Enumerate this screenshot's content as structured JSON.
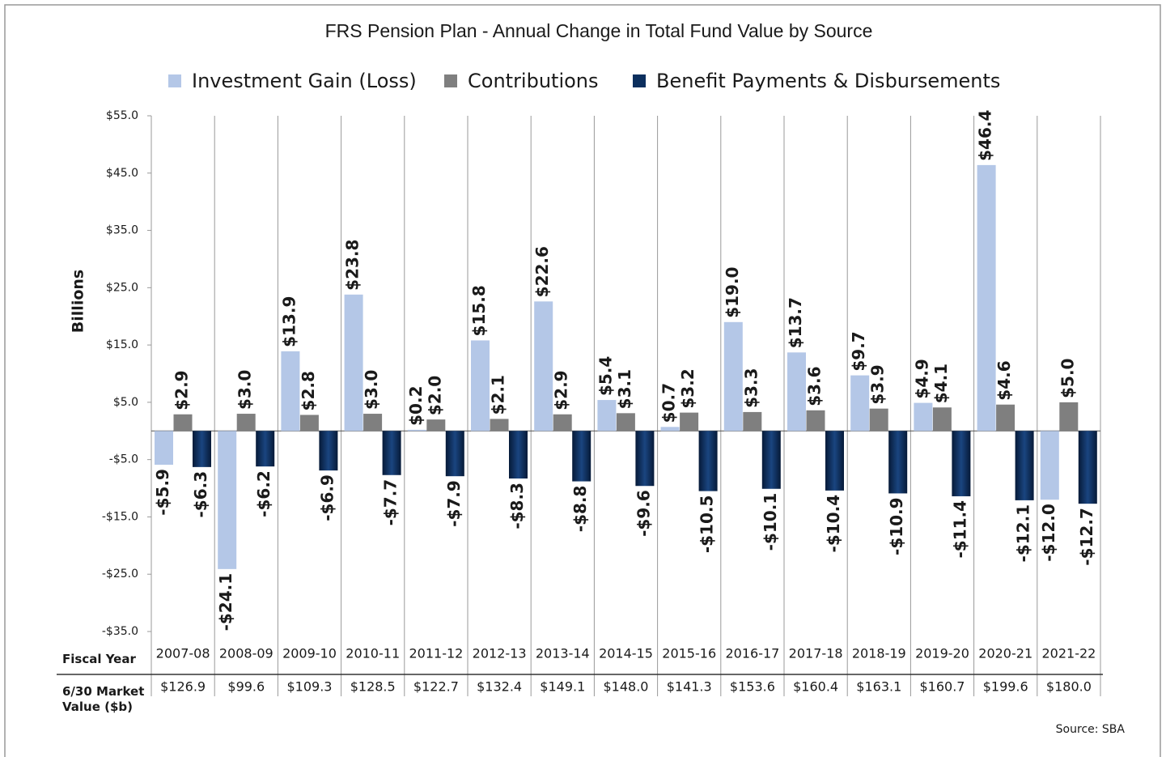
{
  "chart_data": {
    "type": "bar",
    "title": "FRS Pension Plan - Annual Change in Total Fund Value by Source",
    "y_axis_label": "Billions",
    "source": "Source: SBA",
    "categories": [
      "2007-08",
      "2008-09",
      "2009-10",
      "2010-11",
      "2011-12",
      "2012-13",
      "2013-14",
      "2014-15",
      "2015-16",
      "2016-17",
      "2017-18",
      "2018-19",
      "2019-20",
      "2020-21",
      "2021-22"
    ],
    "series": [
      {
        "name": "Investment Gain (Loss)",
        "color": "#b4c7e7",
        "values": [
          -5.9,
          -24.1,
          13.9,
          23.8,
          0.2,
          15.8,
          22.6,
          5.4,
          0.7,
          19.0,
          13.7,
          9.7,
          4.9,
          46.4,
          -12.0
        ],
        "value_labels": [
          "-$5.9",
          "-$24.1",
          "$13.9",
          "$23.8",
          "$0.2",
          "$15.8",
          "$22.6",
          "$5.4",
          "$0.7",
          "$19.0",
          "$13.7",
          "$9.7",
          "$4.9",
          "$46.4",
          "-$12.0"
        ]
      },
      {
        "name": "Contributions",
        "color": "#7f7f7f",
        "values": [
          2.9,
          3.0,
          2.8,
          3.0,
          2.0,
          2.1,
          2.9,
          3.1,
          3.2,
          3.3,
          3.6,
          3.9,
          4.1,
          4.6,
          5.0
        ],
        "value_labels": [
          "$2.9",
          "$3.0",
          "$2.8",
          "$3.0",
          "$2.0",
          "$2.1",
          "$2.9",
          "$3.1",
          "$3.2",
          "$3.3",
          "$3.6",
          "$3.9",
          "$4.1",
          "$4.6",
          "$5.0"
        ]
      },
      {
        "name": "Benefit Payments & Disbursements",
        "color": "#0c2f5e",
        "values": [
          -6.3,
          -6.2,
          -6.9,
          -7.7,
          -7.9,
          -8.3,
          -8.8,
          -9.6,
          -10.5,
          -10.1,
          -10.4,
          -10.9,
          -11.4,
          -12.1,
          -12.7
        ],
        "value_labels": [
          "-$6.3",
          "-$6.2",
          "-$6.9",
          "-$7.7",
          "-$7.9",
          "-$8.3",
          "-$8.8",
          "-$9.6",
          "-$10.5",
          "-$10.1",
          "-$10.4",
          "-$10.9",
          "-$11.4",
          "-$12.1",
          "-$12.7"
        ]
      }
    ],
    "ylim": [
      -35,
      55
    ],
    "yticks": [
      {
        "value": 55,
        "label": "$55.0"
      },
      {
        "value": 45,
        "label": "$45.0"
      },
      {
        "value": 35,
        "label": "$35.0"
      },
      {
        "value": 25,
        "label": "$25.0"
      },
      {
        "value": 15,
        "label": "$15.0"
      },
      {
        "value": 5,
        "label": "$5.0"
      },
      {
        "value": -5,
        "label": "-$5.0"
      },
      {
        "value": -15,
        "label": "-$15.0"
      },
      {
        "value": -25,
        "label": "-$25.0"
      },
      {
        "value": -35,
        "label": "-$35.0"
      }
    ],
    "grid": false,
    "legend": "top",
    "table": {
      "row_labels": [
        "Fiscal Year",
        "6/30 Market Value ($b)"
      ],
      "market_values": [
        "$126.9",
        "$99.6",
        "$109.3",
        "$128.5",
        "$122.7",
        "$132.4",
        "$149.1",
        "$148.0",
        "$141.3",
        "$153.6",
        "$160.4",
        "$163.1",
        "$160.7",
        "$199.6",
        "$180.0"
      ]
    }
  }
}
